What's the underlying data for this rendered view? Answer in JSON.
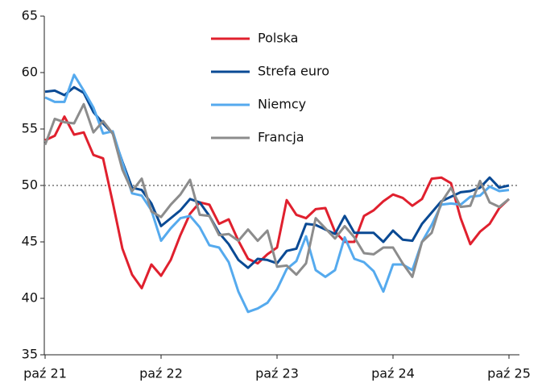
{
  "chart_data": {
    "type": "line",
    "categories": [
      "paź 21",
      null,
      null,
      null,
      null,
      null,
      null,
      null,
      null,
      null,
      null,
      null,
      "paź 22",
      null,
      null,
      null,
      null,
      null,
      null,
      null,
      null,
      null,
      null,
      null,
      "paź 23",
      null,
      null,
      null,
      null,
      null,
      null,
      null,
      null,
      null,
      null,
      null,
      "paź 24",
      null,
      null,
      null,
      null,
      null,
      null,
      null,
      null,
      null,
      null,
      null,
      "paź 25"
    ],
    "series": [
      {
        "name": "Polska",
        "color": "#e0202e",
        "values": [
          54,
          54.4,
          56.1,
          54.5,
          54.7,
          52.7,
          52.4,
          48.5,
          44.4,
          42.1,
          40.9,
          43,
          42,
          43.4,
          45.6,
          47.5,
          48.5,
          48.3,
          46.6,
          47,
          45.1,
          43.5,
          43.1,
          43.9,
          44.5,
          48.7,
          47.4,
          47.1,
          47.9,
          48,
          45.9,
          45,
          45,
          47.3,
          47.8,
          48.6,
          49.2,
          48.9,
          48.2,
          48.8,
          50.6,
          50.7,
          50.2,
          47.1,
          44.8,
          45.9,
          46.6,
          48,
          48.8
        ]
      },
      {
        "name": "Strefa euro",
        "color": "#0a4a94",
        "values": [
          58.3,
          58.4,
          58,
          58.7,
          58.2,
          56.5,
          55.5,
          54.6,
          52.1,
          49.8,
          49.6,
          48.4,
          46.4,
          47.1,
          47.8,
          48.8,
          48.5,
          47.3,
          45.8,
          44.8,
          43.4,
          42.7,
          43.5,
          43.4,
          43.1,
          44.2,
          44.4,
          46.6,
          46.5,
          46.1,
          45.7,
          47.3,
          45.8,
          45.8,
          45.8,
          45,
          46,
          45.2,
          45.1,
          46.6,
          47.6,
          48.6,
          49,
          49.4,
          49.5,
          49.8,
          50.7,
          49.8,
          50
        ]
      },
      {
        "name": "Niemcy",
        "color": "#55aaee",
        "values": [
          57.8,
          57.4,
          57.4,
          59.8,
          58.4,
          56.9,
          54.6,
          54.8,
          52,
          49.3,
          49.1,
          47.8,
          45.1,
          46.2,
          47.1,
          47.3,
          46.3,
          44.7,
          44.5,
          43.2,
          40.6,
          38.8,
          39.1,
          39.6,
          40.8,
          42.6,
          43.3,
          45.5,
          42.5,
          41.9,
          42.5,
          45.4,
          43.5,
          43.2,
          42.4,
          40.6,
          43,
          43,
          42.5,
          45,
          46.5,
          48.3,
          48.4,
          48.3,
          49,
          49.1,
          49.9,
          49.5,
          49.6
        ]
      },
      {
        "name": "Francja",
        "color": "#8c8c8c",
        "values": [
          53.6,
          55.9,
          55.6,
          55.5,
          57.2,
          54.7,
          55.7,
          54.6,
          51.4,
          49.5,
          50.6,
          47.7,
          47.2,
          48.3,
          49.2,
          50.5,
          47.4,
          47.3,
          45.6,
          45.7,
          45.1,
          46.1,
          45.1,
          46,
          42.8,
          42.9,
          42.1,
          43.1,
          47.1,
          46.2,
          45.3,
          46.4,
          45.4,
          44,
          43.9,
          44.5,
          44.5,
          43.1,
          41.9,
          45,
          45.8,
          48.5,
          49.8,
          48.1,
          48.2,
          50.4,
          48.5,
          48.1,
          48.8
        ]
      }
    ],
    "ylim": [
      35,
      65
    ],
    "yticks": [
      35,
      40,
      45,
      50,
      55,
      60,
      65
    ],
    "reference_line": 50,
    "legend": "top-center",
    "grid": false
  }
}
